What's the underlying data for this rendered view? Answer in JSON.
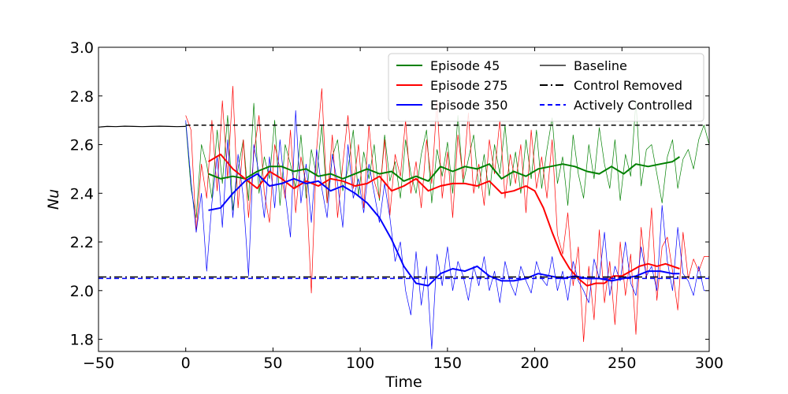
{
  "chart_data": {
    "type": "line",
    "xlabel": "Time",
    "ylabel": "Nu",
    "xlim": [
      -50,
      300
    ],
    "ylim": [
      1.75,
      3.0
    ],
    "xticks": [
      -50,
      0,
      50,
      100,
      150,
      200,
      250,
      300
    ],
    "yticks": [
      1.8,
      2.0,
      2.2,
      2.4,
      2.6,
      2.8,
      3.0
    ],
    "xtick_labels": [
      "−50",
      "0",
      "50",
      "100",
      "150",
      "200",
      "250",
      "300"
    ],
    "ytick_labels": [
      "1.8",
      "2.0",
      "2.2",
      "2.4",
      "2.6",
      "2.8",
      "3.0"
    ],
    "legend_position": "upper right",
    "colors": {
      "episode45": "#008000",
      "episode275": "#ff0000",
      "episode350": "#0000ff",
      "baseline": "#000000",
      "control_removed": "#000000",
      "actively_controlled": "#0000ff"
    },
    "legend": [
      {
        "label": "Episode 45",
        "color": "#008000",
        "style": "solid"
      },
      {
        "label": "Episode 275",
        "color": "#ff0000",
        "style": "solid"
      },
      {
        "label": "Episode 350",
        "color": "#0000ff",
        "style": "solid"
      },
      {
        "label": "Baseline",
        "color": "#000000",
        "style": "solid"
      },
      {
        "label": "Control Removed",
        "color": "#000000",
        "style": "dashdot"
      },
      {
        "label": "Actively Controlled",
        "color": "#0000ff",
        "style": "dashed"
      }
    ],
    "reference_lines": [
      {
        "name": "baseline-dashed",
        "y": 2.68,
        "x_start": 0,
        "x_end": 300,
        "color": "#000000",
        "style": "dashed"
      },
      {
        "name": "control-removed",
        "y": 2.056,
        "x_start": -50,
        "x_end": 300,
        "color": "#000000",
        "style": "dashdot"
      },
      {
        "name": "actively-controlled",
        "y": 2.05,
        "x_start": -50,
        "x_end": 300,
        "color": "#0000ff",
        "style": "dashed"
      }
    ],
    "series": [
      {
        "name": "Baseline",
        "color": "#000000",
        "width": 1.2,
        "x": [
          -50,
          -45,
          -40,
          -35,
          -30,
          -25,
          -20,
          -15,
          -10,
          -5,
          0
        ],
        "y": [
          2.672,
          2.675,
          2.674,
          2.676,
          2.675,
          2.674,
          2.675,
          2.676,
          2.675,
          2.674,
          2.675
        ]
      },
      {
        "name": "Episode 45 (raw)",
        "color": "#008000",
        "width": 0.7,
        "x": [
          0,
          3,
          6,
          9,
          12,
          15,
          18,
          21,
          24,
          27,
          30,
          33,
          36,
          39,
          42,
          45,
          48,
          51,
          54,
          57,
          60,
          63,
          66,
          69,
          72,
          75,
          78,
          81,
          84,
          87,
          90,
          93,
          96,
          99,
          102,
          105,
          108,
          111,
          114,
          117,
          120,
          123,
          126,
          129,
          132,
          135,
          138,
          141,
          144,
          147,
          150,
          153,
          156,
          159,
          162,
          165,
          168,
          171,
          174,
          177,
          180,
          183,
          186,
          189,
          192,
          195,
          198,
          201,
          204,
          207,
          210,
          213,
          216,
          219,
          222,
          225,
          228,
          231,
          234,
          237,
          240,
          243,
          246,
          249,
          252,
          255,
          258,
          261,
          264,
          267,
          270,
          273,
          276,
          279,
          282,
          285,
          288,
          291,
          294,
          297,
          300
        ],
        "y": [
          2.69,
          2.42,
          2.3,
          2.6,
          2.52,
          2.38,
          2.66,
          2.44,
          2.72,
          2.33,
          2.5,
          2.62,
          2.37,
          2.77,
          2.4,
          2.55,
          2.46,
          2.7,
          2.35,
          2.6,
          2.52,
          2.42,
          2.64,
          2.38,
          2.58,
          2.47,
          2.68,
          2.36,
          2.55,
          2.62,
          2.41,
          2.5,
          2.66,
          2.39,
          2.57,
          2.46,
          2.6,
          2.37,
          2.64,
          2.45,
          2.53,
          2.38,
          2.62,
          2.48,
          2.4,
          2.56,
          2.66,
          2.36,
          2.58,
          2.47,
          2.61,
          2.4,
          2.72,
          2.44,
          2.54,
          2.64,
          2.42,
          2.56,
          2.39,
          2.6,
          2.48,
          2.68,
          2.43,
          2.57,
          2.4,
          2.62,
          2.46,
          2.66,
          2.42,
          2.58,
          2.71,
          2.44,
          2.55,
          2.35,
          2.64,
          2.48,
          2.38,
          2.6,
          2.46,
          2.67,
          2.52,
          2.42,
          2.62,
          2.37,
          2.56,
          2.47,
          2.78,
          2.43,
          2.58,
          2.6,
          2.48,
          2.36,
          2.55,
          2.62,
          2.42,
          2.54,
          2.58,
          2.5,
          2.62,
          2.68,
          2.6
        ]
      },
      {
        "name": "Episode 275 (raw)",
        "color": "#ff0000",
        "width": 0.7,
        "x": [
          0,
          3,
          6,
          9,
          12,
          15,
          18,
          21,
          24,
          27,
          30,
          33,
          36,
          39,
          42,
          45,
          48,
          51,
          54,
          57,
          60,
          63,
          66,
          69,
          72,
          75,
          78,
          81,
          84,
          87,
          90,
          93,
          96,
          99,
          102,
          105,
          108,
          111,
          114,
          117,
          120,
          123,
          126,
          129,
          132,
          135,
          138,
          141,
          144,
          147,
          150,
          153,
          156,
          159,
          162,
          165,
          168,
          171,
          174,
          177,
          180,
          183,
          186,
          189,
          192,
          195,
          198,
          201,
          204,
          207,
          210,
          213,
          216,
          219,
          222,
          225,
          228,
          231,
          234,
          237,
          240,
          243,
          246,
          249,
          252,
          255,
          258,
          261,
          264,
          267,
          270,
          273,
          276,
          279,
          282,
          285,
          288,
          291,
          294,
          297,
          300
        ],
        "y": [
          2.72,
          2.66,
          2.24,
          2.52,
          2.38,
          2.7,
          2.41,
          2.78,
          2.46,
          2.84,
          2.34,
          2.62,
          2.3,
          2.56,
          2.72,
          2.4,
          2.28,
          2.6,
          2.5,
          2.38,
          2.66,
          2.32,
          2.55,
          2.44,
          1.99,
          2.58,
          2.83,
          2.36,
          2.64,
          2.3,
          2.52,
          2.72,
          2.42,
          2.6,
          2.34,
          2.68,
          2.45,
          2.38,
          2.62,
          2.31,
          2.56,
          2.47,
          2.7,
          2.4,
          2.53,
          2.34,
          2.62,
          2.44,
          2.78,
          2.38,
          2.57,
          2.3,
          2.64,
          2.46,
          2.73,
          2.4,
          2.52,
          2.35,
          2.62,
          2.48,
          2.7,
          2.38,
          2.56,
          2.44,
          2.6,
          2.32,
          2.66,
          2.42,
          2.55,
          2.38,
          2.62,
          2.23,
          2.15,
          2.32,
          2.02,
          2.18,
          1.79,
          2.1,
          1.88,
          2.25,
          1.95,
          2.12,
          1.86,
          2.2,
          1.98,
          2.15,
          1.82,
          2.26,
          2.05,
          2.34,
          1.96,
          2.18,
          2.22,
          2.08,
          1.92,
          2.24,
          2.05,
          2.13,
          2.08,
          2.14,
          2.14
        ]
      },
      {
        "name": "Episode 350 (raw)",
        "color": "#0000ff",
        "width": 0.7,
        "x": [
          0,
          3,
          6,
          9,
          12,
          15,
          18,
          21,
          24,
          27,
          30,
          33,
          36,
          39,
          42,
          45,
          48,
          51,
          54,
          57,
          60,
          63,
          66,
          69,
          72,
          75,
          78,
          81,
          84,
          87,
          90,
          93,
          96,
          99,
          102,
          105,
          108,
          111,
          114,
          117,
          120,
          123,
          126,
          129,
          132,
          135,
          138,
          141,
          144,
          147,
          150,
          153,
          156,
          159,
          162,
          165,
          168,
          171,
          174,
          177,
          180,
          183,
          186,
          189,
          192,
          195,
          198,
          201,
          204,
          207,
          210,
          213,
          216,
          219,
          222,
          225,
          228,
          231,
          234,
          237,
          240,
          243,
          246,
          249,
          252,
          255,
          258,
          261,
          264,
          267,
          270,
          273,
          276,
          279,
          282,
          285,
          288,
          291,
          294,
          297,
          300
        ],
        "y": [
          2.7,
          2.45,
          2.24,
          2.4,
          2.08,
          2.36,
          2.55,
          2.26,
          2.62,
          2.3,
          2.56,
          2.38,
          2.06,
          2.6,
          2.48,
          2.3,
          2.55,
          2.34,
          2.62,
          2.4,
          2.22,
          2.74,
          2.36,
          2.52,
          2.28,
          2.58,
          2.42,
          2.3,
          2.56,
          2.44,
          2.26,
          2.6,
          2.38,
          2.46,
          2.32,
          2.52,
          2.4,
          2.28,
          2.44,
          2.3,
          2.12,
          2.2,
          2.0,
          1.9,
          2.16,
          1.94,
          2.1,
          1.76,
          2.15,
          2.02,
          2.18,
          2.0,
          2.12,
          2.06,
          1.96,
          2.1,
          2.02,
          2.14,
          2.0,
          2.08,
          1.95,
          2.12,
          2.03,
          1.98,
          2.1,
          2.04,
          1.99,
          2.12,
          2.05,
          2.02,
          2.14,
          2.0,
          2.08,
          1.96,
          2.12,
          2.04,
          2.0,
          1.95,
          2.13,
          2.05,
          2.24,
          1.98,
          2.1,
          2.04,
          2.2,
          2.03,
          1.98,
          2.18,
          2.06,
          2.1,
          2.0,
          2.35,
          2.12,
          2.0,
          2.26,
          2.07,
          2.04,
          1.98,
          2.1,
          2.0,
          2.0
        ]
      },
      {
        "name": "Episode 45",
        "color": "#008000",
        "width": 2,
        "x": [
          13,
          20,
          27,
          34,
          41,
          48,
          55,
          62,
          69,
          76,
          83,
          90,
          97,
          104,
          111,
          118,
          125,
          132,
          139,
          146,
          153,
          160,
          167,
          174,
          181,
          188,
          195,
          202,
          209,
          216,
          223,
          230,
          237,
          244,
          251,
          258,
          265,
          272,
          279,
          283
        ],
        "y": [
          2.48,
          2.46,
          2.47,
          2.46,
          2.49,
          2.51,
          2.51,
          2.49,
          2.5,
          2.47,
          2.48,
          2.46,
          2.48,
          2.5,
          2.48,
          2.49,
          2.45,
          2.47,
          2.45,
          2.51,
          2.49,
          2.51,
          2.5,
          2.52,
          2.46,
          2.49,
          2.47,
          2.5,
          2.51,
          2.52,
          2.51,
          2.49,
          2.48,
          2.51,
          2.48,
          2.52,
          2.51,
          2.52,
          2.53,
          2.55
        ]
      },
      {
        "name": "Episode 275",
        "color": "#ff0000",
        "width": 2,
        "x": [
          13,
          20,
          27,
          34,
          41,
          48,
          55,
          62,
          69,
          76,
          83,
          90,
          97,
          104,
          111,
          118,
          125,
          132,
          139,
          146,
          153,
          160,
          167,
          174,
          181,
          188,
          195,
          200,
          205,
          210,
          215,
          220,
          225,
          230,
          235,
          240,
          245,
          250,
          255,
          260,
          265,
          270,
          275,
          283
        ],
        "y": [
          2.53,
          2.56,
          2.5,
          2.46,
          2.42,
          2.49,
          2.46,
          2.42,
          2.45,
          2.43,
          2.46,
          2.45,
          2.43,
          2.44,
          2.47,
          2.41,
          2.43,
          2.46,
          2.41,
          2.43,
          2.44,
          2.44,
          2.43,
          2.45,
          2.4,
          2.41,
          2.43,
          2.41,
          2.34,
          2.24,
          2.15,
          2.09,
          2.05,
          2.02,
          2.03,
          2.03,
          2.06,
          2.06,
          2.08,
          2.1,
          2.11,
          2.1,
          2.11,
          2.09
        ]
      },
      {
        "name": "Episode 350",
        "color": "#0000ff",
        "width": 2,
        "x": [
          13,
          20,
          27,
          34,
          41,
          48,
          55,
          62,
          69,
          76,
          83,
          90,
          97,
          104,
          111,
          118,
          125,
          132,
          139,
          146,
          153,
          160,
          167,
          174,
          181,
          188,
          195,
          202,
          209,
          216,
          223,
          230,
          237,
          244,
          251,
          258,
          265,
          272,
          279,
          283
        ],
        "y": [
          2.33,
          2.34,
          2.4,
          2.45,
          2.48,
          2.43,
          2.44,
          2.46,
          2.44,
          2.45,
          2.41,
          2.43,
          2.4,
          2.36,
          2.3,
          2.21,
          2.1,
          2.03,
          2.02,
          2.07,
          2.09,
          2.08,
          2.1,
          2.06,
          2.04,
          2.04,
          2.05,
          2.07,
          2.06,
          2.05,
          2.06,
          2.05,
          2.05,
          2.04,
          2.05,
          2.06,
          2.08,
          2.08,
          2.07,
          2.07
        ]
      }
    ]
  }
}
